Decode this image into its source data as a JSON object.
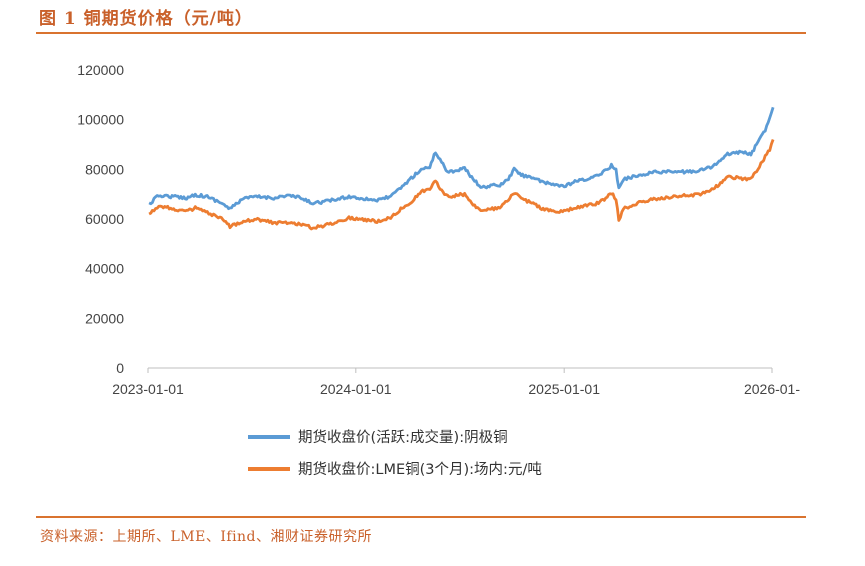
{
  "header": {
    "title": "图 1  铜期货价格（元/吨）"
  },
  "footer": {
    "source": "资料来源：上期所、LME、Ifind、湘财证券研究所"
  },
  "colors": {
    "accent": "#d9732f",
    "series_blue": "#5b9bd5",
    "series_orange": "#ed7d31"
  },
  "chart_data": {
    "type": "line",
    "title": "图 1  铜期货价格（元/吨）",
    "xlabel": "",
    "ylabel": "",
    "ylim": [
      0,
      120000
    ],
    "xlim": [
      "2023-01-01",
      "2026-01-01"
    ],
    "y_ticks": [
      "0",
      "20000",
      "40000",
      "60000",
      "80000",
      "100000",
      "120000"
    ],
    "x_ticks": [
      "2023-01-01",
      "2024-01-01",
      "2025-01-01",
      "2026-01-"
    ],
    "grid": false,
    "legend_position": "bottom",
    "series": [
      {
        "name": "期货收盘价(活跃:成交量):阴极铜",
        "color": "#5b9bd5",
        "points": [
          [
            "2023-01-03",
            66000
          ],
          [
            "2023-01-20",
            69500
          ],
          [
            "2023-02-15",
            69000
          ],
          [
            "2023-03-10",
            68500
          ],
          [
            "2023-03-25",
            69800
          ],
          [
            "2023-04-15",
            69000
          ],
          [
            "2023-05-10",
            66500
          ],
          [
            "2023-05-25",
            64000
          ],
          [
            "2023-06-15",
            68000
          ],
          [
            "2023-07-10",
            69000
          ],
          [
            "2023-08-10",
            68500
          ],
          [
            "2023-09-05",
            69500
          ],
          [
            "2023-09-25",
            68500
          ],
          [
            "2023-10-15",
            66500
          ],
          [
            "2023-11-01",
            66800
          ],
          [
            "2023-12-01",
            68000
          ],
          [
            "2023-12-20",
            69000
          ],
          [
            "2024-01-05",
            68500
          ],
          [
            "2024-01-25",
            68000
          ],
          [
            "2024-02-10",
            67500
          ],
          [
            "2024-03-05",
            69500
          ],
          [
            "2024-03-20",
            72500
          ],
          [
            "2024-04-10",
            77000
          ],
          [
            "2024-04-25",
            80000
          ],
          [
            "2024-05-10",
            81000
          ],
          [
            "2024-05-20",
            87000
          ],
          [
            "2024-05-28",
            84000
          ],
          [
            "2024-06-10",
            79000
          ],
          [
            "2024-06-25",
            79500
          ],
          [
            "2024-07-10",
            80500
          ],
          [
            "2024-07-25",
            76000
          ],
          [
            "2024-08-10",
            72500
          ],
          [
            "2024-08-25",
            73500
          ],
          [
            "2024-09-10",
            73500
          ],
          [
            "2024-09-25",
            76000
          ],
          [
            "2024-10-05",
            80000
          ],
          [
            "2024-10-20",
            77500
          ],
          [
            "2024-11-05",
            77000
          ],
          [
            "2024-11-25",
            74500
          ],
          [
            "2024-12-15",
            74000
          ],
          [
            "2025-01-01",
            73000
          ],
          [
            "2025-01-20",
            75000
          ],
          [
            "2025-02-10",
            76000
          ],
          [
            "2025-02-25",
            77000
          ],
          [
            "2025-03-10",
            79000
          ],
          [
            "2025-03-25",
            81500
          ],
          [
            "2025-04-02",
            80000
          ],
          [
            "2025-04-07",
            72000
          ],
          [
            "2025-04-15",
            76000
          ],
          [
            "2025-05-10",
            77500
          ],
          [
            "2025-06-10",
            79000
          ],
          [
            "2025-07-10",
            79000
          ],
          [
            "2025-08-10",
            79000
          ],
          [
            "2025-09-05",
            80000
          ],
          [
            "2025-09-25",
            82000
          ],
          [
            "2025-10-15",
            86000
          ],
          [
            "2025-11-05",
            87000
          ],
          [
            "2025-11-25",
            86000
          ],
          [
            "2025-12-10",
            92000
          ],
          [
            "2025-12-20",
            96000
          ],
          [
            "2025-12-28",
            101000
          ],
          [
            "2026-01-03",
            105000
          ]
        ]
      },
      {
        "name": "期货收盘价:LME铜(3个月):场内:元/吨",
        "color": "#ed7d31",
        "points": [
          [
            "2023-01-03",
            62000
          ],
          [
            "2023-01-20",
            65500
          ],
          [
            "2023-02-15",
            64000
          ],
          [
            "2023-03-10",
            63000
          ],
          [
            "2023-03-25",
            64500
          ],
          [
            "2023-04-15",
            62500
          ],
          [
            "2023-05-10",
            60000
          ],
          [
            "2023-05-25",
            57000
          ],
          [
            "2023-06-15",
            59000
          ],
          [
            "2023-07-10",
            60000
          ],
          [
            "2023-08-10",
            58500
          ],
          [
            "2023-09-05",
            58500
          ],
          [
            "2023-09-25",
            58000
          ],
          [
            "2023-10-15",
            56500
          ],
          [
            "2023-11-01",
            57000
          ],
          [
            "2023-12-01",
            59000
          ],
          [
            "2023-12-20",
            60500
          ],
          [
            "2024-01-05",
            60000
          ],
          [
            "2024-01-25",
            59500
          ],
          [
            "2024-02-10",
            59000
          ],
          [
            "2024-03-05",
            61000
          ],
          [
            "2024-03-20",
            64000
          ],
          [
            "2024-04-10",
            67500
          ],
          [
            "2024-04-25",
            71000
          ],
          [
            "2024-05-10",
            72000
          ],
          [
            "2024-05-20",
            75500
          ],
          [
            "2024-05-28",
            72500
          ],
          [
            "2024-06-10",
            69000
          ],
          [
            "2024-06-25",
            69500
          ],
          [
            "2024-07-10",
            70000
          ],
          [
            "2024-07-25",
            66000
          ],
          [
            "2024-08-10",
            63000
          ],
          [
            "2024-08-25",
            64000
          ],
          [
            "2024-09-10",
            64500
          ],
          [
            "2024-09-25",
            67500
          ],
          [
            "2024-10-05",
            70500
          ],
          [
            "2024-10-20",
            68000
          ],
          [
            "2024-11-05",
            66500
          ],
          [
            "2024-11-25",
            64000
          ],
          [
            "2024-12-15",
            63000
          ],
          [
            "2025-01-01",
            63000
          ],
          [
            "2025-01-20",
            64500
          ],
          [
            "2025-02-10",
            65500
          ],
          [
            "2025-02-25",
            66000
          ],
          [
            "2025-03-10",
            67500
          ],
          [
            "2025-03-25",
            70500
          ],
          [
            "2025-04-02",
            68000
          ],
          [
            "2025-04-07",
            59500
          ],
          [
            "2025-04-15",
            64000
          ],
          [
            "2025-05-10",
            66500
          ],
          [
            "2025-06-10",
            68000
          ],
          [
            "2025-07-10",
            69000
          ],
          [
            "2025-08-10",
            69500
          ],
          [
            "2025-09-05",
            70500
          ],
          [
            "2025-09-25",
            73000
          ],
          [
            "2025-10-15",
            77000
          ],
          [
            "2025-11-05",
            76500
          ],
          [
            "2025-11-25",
            76000
          ],
          [
            "2025-12-10",
            81000
          ],
          [
            "2025-12-20",
            85000
          ],
          [
            "2025-12-28",
            88000
          ],
          [
            "2026-01-03",
            92000
          ]
        ]
      }
    ]
  }
}
